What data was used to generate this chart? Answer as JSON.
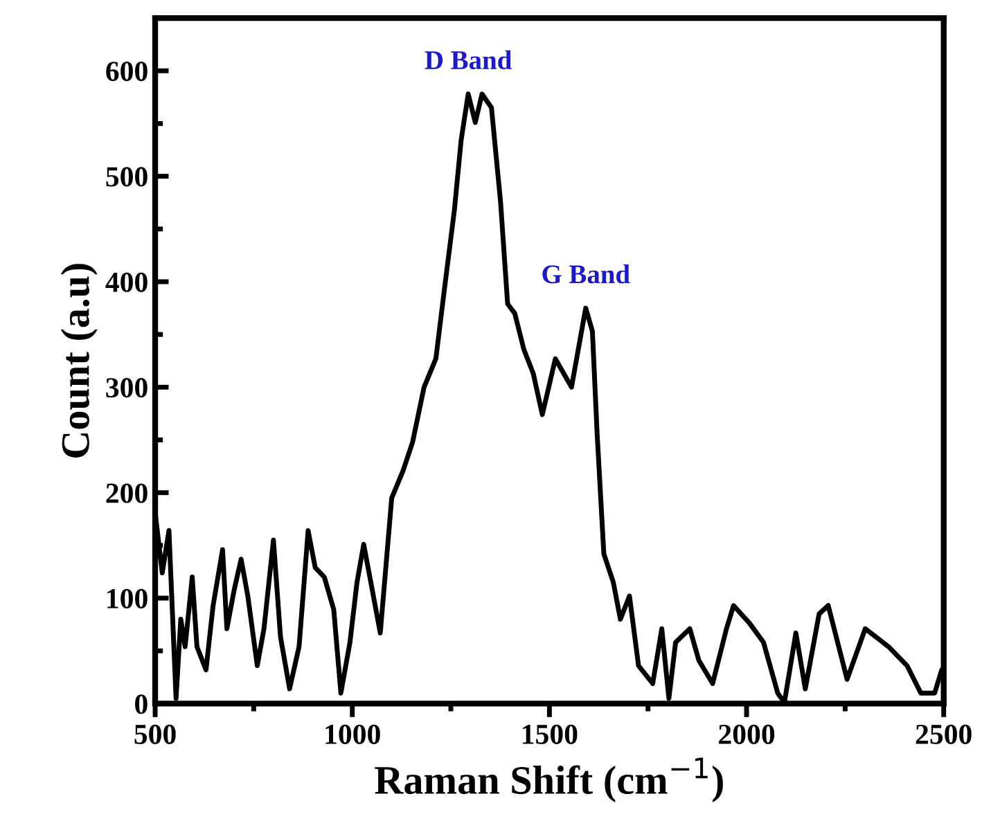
{
  "chart_data": {
    "type": "line",
    "xlabel": "Raman Shift (cm$^{−1}$)",
    "ylabel": "Count (a.u)",
    "xlim": [
      500,
      2500
    ],
    "xticks": [
      500,
      1000,
      1500,
      2000,
      2500
    ],
    "ylim": [
      0,
      650
    ],
    "yticks": [
      0,
      100,
      200,
      300,
      400,
      500,
      600
    ],
    "annotations": [
      {
        "text": "D Band",
        "x": 1294,
        "y": 578
      },
      {
        "text": "G Band",
        "x": 1592,
        "y": 375
      }
    ],
    "series": [
      {
        "color": "#000000",
        "x": [
          500,
          518,
          535,
          553,
          565,
          576,
          594,
          606,
          629,
          647,
          671,
          682,
          700,
          718,
          735,
          759,
          776,
          800,
          818,
          841,
          865,
          888,
          906,
          929,
          953,
          971,
          994,
          1012,
          1029,
          1047,
          1071,
          1100,
          1129,
          1153,
          1182,
          1212,
          1235,
          1259,
          1276,
          1294,
          1312,
          1329,
          1353,
          1376,
          1394,
          1412,
          1435,
          1459,
          1482,
          1515,
          1556,
          1592,
          1609,
          1621,
          1638,
          1662,
          1680,
          1703,
          1726,
          1762,
          1785,
          1803,
          1820,
          1856,
          1879,
          1914,
          1949,
          1967,
          2008,
          2043,
          2079,
          2096,
          2125,
          2149,
          2184,
          2207,
          2255,
          2301,
          2360,
          2407,
          2442,
          2477,
          2495,
          2500
        ],
        "values": [
          181,
          124,
          164,
          5,
          80,
          54,
          120,
          54,
          32,
          93,
          146,
          71,
          107,
          137,
          102,
          36,
          71,
          155,
          63,
          14,
          54,
          164,
          129,
          120,
          89,
          10,
          58,
          115,
          151,
          115,
          67,
          195,
          221,
          248,
          300,
          327,
          397,
          468,
          534,
          578,
          551,
          578,
          565,
          476,
          379,
          370,
          336,
          313,
          274,
          327,
          300,
          375,
          353,
          256,
          142,
          115,
          80,
          102,
          36,
          19,
          71,
          5,
          58,
          71,
          41,
          19,
          71,
          93,
          76,
          58,
          10,
          1,
          67,
          14,
          85,
          93,
          23,
          71,
          54,
          36,
          10,
          10,
          32,
          30
        ]
      }
    ]
  }
}
